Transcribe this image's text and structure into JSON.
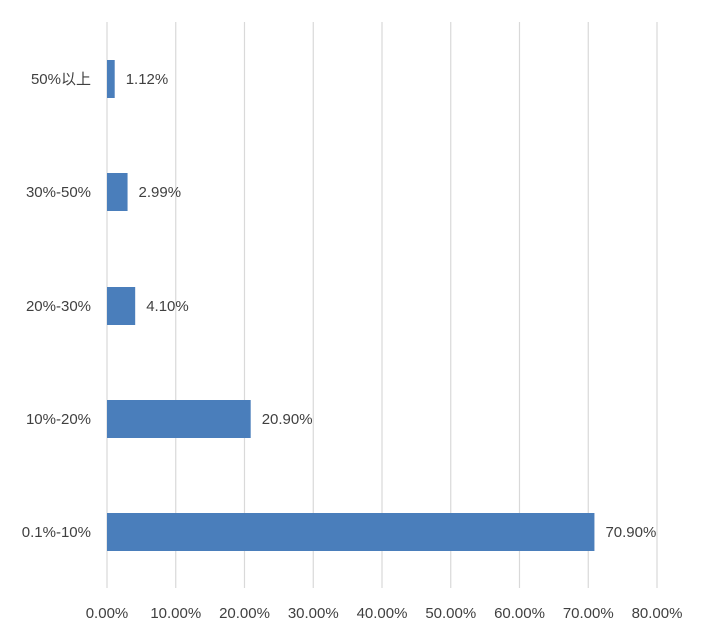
{
  "chart_data": {
    "type": "bar",
    "orientation": "horizontal",
    "categories": [
      "50%以上",
      "30%-50%",
      "20%-30%",
      "10%-20%",
      "0.1%-10%"
    ],
    "values": [
      1.12,
      2.99,
      4.1,
      20.9,
      70.9
    ],
    "value_labels": [
      "1.12%",
      "2.99%",
      "4.10%",
      "20.90%",
      "70.90%"
    ],
    "x_ticks": [
      "0.00%",
      "10.00%",
      "20.00%",
      "30.00%",
      "40.00%",
      "50.00%",
      "60.00%",
      "70.00%",
      "80.00%"
    ],
    "xlim": [
      0,
      80
    ],
    "title": "",
    "xlabel": "",
    "ylabel": "",
    "grid": "vertical",
    "legend": "none",
    "colors": {
      "bar": "#4A7EBB",
      "grid": "#D9D9D9",
      "text": "#404040"
    }
  }
}
